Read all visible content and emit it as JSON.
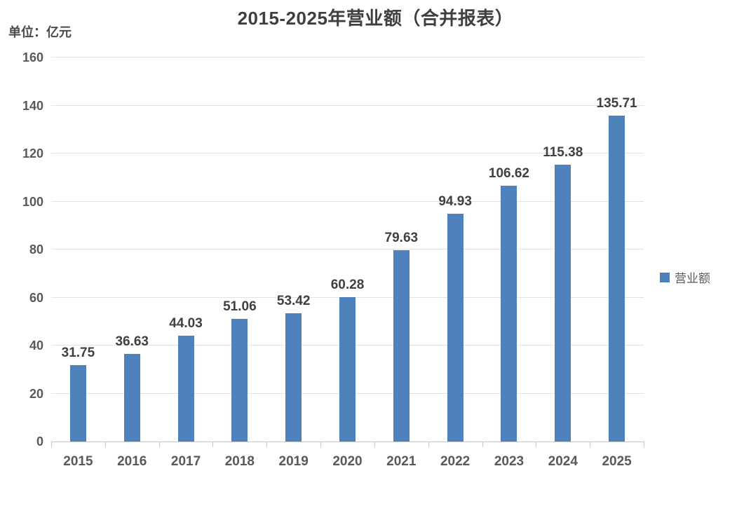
{
  "chart_data": {
    "type": "bar",
    "title": "2015-2025年营业额（合并报表）",
    "unit_label": "单位：亿元",
    "categories": [
      "2015",
      "2016",
      "2017",
      "2018",
      "2019",
      "2020",
      "2021",
      "2022",
      "2023",
      "2024",
      "2025"
    ],
    "series": [
      {
        "name": "营业额",
        "values": [
          31.75,
          36.63,
          44.03,
          51.06,
          53.42,
          60.28,
          79.63,
          94.93,
          106.62,
          115.38,
          135.71
        ]
      }
    ],
    "data_labels": [
      "31.75",
      "36.63",
      "44.03",
      "51.06",
      "53.42",
      "60.28",
      "79.63",
      "94.93",
      "106.62",
      "115.38",
      "135.71"
    ],
    "xlabel": "",
    "ylabel": "",
    "ylim": [
      0,
      160
    ],
    "yticks": [
      0,
      20,
      40,
      60,
      80,
      100,
      120,
      140,
      160
    ],
    "grid": true,
    "legend_position": "right",
    "colors": {
      "bar": "#4F81BD",
      "title_text": "#3f3f3f",
      "data_label_text": "#404040",
      "axis_tick_text": "#595959",
      "gridline": "#e2e2e2",
      "axis_line": "#c6c6c6"
    }
  }
}
